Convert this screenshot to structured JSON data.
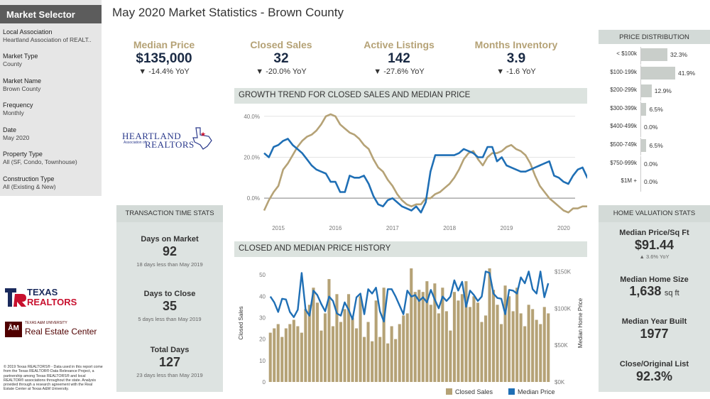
{
  "sidebar": {
    "header": "Market Selector",
    "fields": [
      {
        "label": "Local Association",
        "value": "Heartland Association of REALT.."
      },
      {
        "label": "Market Type",
        "value": "County"
      },
      {
        "label": "Market Name",
        "value": "Brown County"
      },
      {
        "label": "Frequency",
        "value": "Monthly"
      },
      {
        "label": "Date",
        "value": "May 2020"
      },
      {
        "label": "Property Type",
        "value": "All (SF, Condo, Townhouse)"
      },
      {
        "label": "Construction Type",
        "value": "All (Existing & New)"
      }
    ]
  },
  "title": "May 2020 Market Statistics - Brown County",
  "kpis": [
    {
      "label": "Median Price",
      "value": "$135,000",
      "change": "▼ -14.4% YoY"
    },
    {
      "label": "Closed Sales",
      "value": "32",
      "change": "▼ -20.0% YoY"
    },
    {
      "label": "Active Listings",
      "value": "142",
      "change": "▼ -27.6% YoY"
    },
    {
      "label": "Months Inventory",
      "value": "3.9",
      "change": "▼ -1.6 YoY"
    }
  ],
  "logos": {
    "heartland_line1": "HEARTLAND",
    "heartland_line2": "Association of",
    "heartland_line3": "REALTORS",
    "texas_realtors_1": "TEXAS",
    "texas_realtors_2": "REALTORS",
    "tamu_small": "TEXAS A&M UNIVERSITY",
    "tamu_name": "Real Estate Center",
    "tamu_mark": "ĀM"
  },
  "footnote": "© 2019 Texas REALTORS® - Data used in this report come from the Texas REALTOR® Data Relevance Project, a partnership among Texas REALTORS® and local REALTOR® associations throughout the state. Analysis provided through a research agreement with the Real Estate Center at Texas A&M University.",
  "transaction_stats": {
    "title": "TRANSACTION TIME STATS",
    "items": [
      {
        "label": "Days on Market",
        "value": "92",
        "note": "18 days less than May 2019"
      },
      {
        "label": "Days to Close",
        "value": "35",
        "note": "5 days less than May 2019"
      },
      {
        "label": "Total Days",
        "value": "127",
        "note": "23 days less than May 2019"
      }
    ]
  },
  "growth_trend": {
    "title": "GROWTH TREND FOR CLOSED SALES AND MEDIAN PRICE"
  },
  "history": {
    "title": "CLOSED AND MEDIAN PRICE HISTORY",
    "legend_sales": "Closed Sales",
    "legend_price": "Median Price"
  },
  "price_distribution": {
    "title": "PRICE DISTRIBUTION",
    "rows": [
      {
        "label": "< $100k",
        "value": "32.3%",
        "pct": 32.3
      },
      {
        "label": "$100-199k",
        "value": "41.9%",
        "pct": 41.9
      },
      {
        "label": "$200-299k",
        "value": "12.9%",
        "pct": 12.9
      },
      {
        "label": "$300-399k",
        "value": "6.5%",
        "pct": 6.5
      },
      {
        "label": "$400-499k",
        "value": "0.0%",
        "pct": 0
      },
      {
        "label": "$500-749k",
        "value": "6.5%",
        "pct": 6.5
      },
      {
        "label": "$750-999k",
        "value": "0.0%",
        "pct": 0
      },
      {
        "label": "$1M +",
        "value": "0.0%",
        "pct": 0
      }
    ]
  },
  "home_valuation": {
    "title": "HOME VALUATION STATS",
    "ppsf_label": "Median Price/Sq Ft",
    "ppsf_value": "$91.44",
    "ppsf_change": "▲ 3.6% YoY",
    "size_label": "Median Home Size",
    "size_value": "1,638",
    "size_unit": "sq ft",
    "year_label": "Median Year Built",
    "year_value": "1977",
    "ratio_label": "Close/Original List",
    "ratio_value": "92.3%"
  },
  "colors": {
    "sales": "#b5a276",
    "price": "#1f6fb5",
    "gold": "#b5a276",
    "navy": "#1a2a44"
  },
  "chart_data": [
    {
      "type": "line",
      "title": "GROWTH TREND FOR CLOSED SALES AND MEDIAN PRICE",
      "xlabel": "",
      "ylabel": "",
      "x_ticks": [
        "2015",
        "2016",
        "2017",
        "2018",
        "2019",
        "2020"
      ],
      "y_ticks": [
        "0.0%",
        "20.0%",
        "40.0%"
      ],
      "ylim": [
        -10,
        42
      ],
      "x_start": 2014.75,
      "x_step": 0.0833,
      "series": [
        {
          "name": "Closed Sales",
          "values": [
            -6,
            -1,
            3,
            6,
            14,
            17,
            21,
            25,
            28,
            30,
            31,
            33,
            36,
            40,
            41,
            40,
            36,
            34,
            32,
            31,
            29,
            26,
            24,
            19,
            15,
            13,
            9,
            6,
            2,
            -1,
            -3,
            -4,
            -3,
            -3,
            0,
            0,
            2,
            3,
            5,
            7,
            10,
            14,
            19,
            22,
            23,
            19,
            16,
            20,
            22,
            22,
            23,
            25,
            26,
            24,
            23,
            21,
            17,
            11,
            6,
            3,
            0,
            -2,
            -4,
            -6,
            -7,
            -5,
            -5,
            -4,
            -4,
            -2,
            2,
            3,
            3,
            3,
            9,
            7,
            6
          ]
        },
        {
          "name": "Median Price",
          "values": [
            22,
            20,
            25,
            26,
            28,
            29,
            26,
            24,
            22,
            19,
            16,
            14,
            13,
            12,
            8,
            8,
            3,
            3,
            11,
            10,
            10,
            11,
            7,
            1,
            -3,
            -4,
            -1,
            0,
            -2,
            -4,
            -5,
            -6,
            -4,
            -7,
            -2,
            13,
            21,
            21,
            21,
            21,
            21,
            22,
            24,
            23,
            22,
            20,
            20,
            25,
            25,
            18,
            20,
            16,
            15,
            14,
            13,
            13,
            14,
            15,
            16,
            17,
            18,
            11,
            10,
            8,
            7,
            11,
            14,
            15,
            10,
            8,
            8
          ]
        }
      ]
    },
    {
      "type": "bar",
      "title": "CLOSED AND MEDIAN PRICE HISTORY",
      "xlabel": "",
      "ylabel": "Closed Sales",
      "y2label": "Median Home Price",
      "ylim": [
        0,
        55
      ],
      "y_ticks": [
        "0",
        "10",
        "20",
        "30",
        "40",
        "50"
      ],
      "y2lim": [
        0,
        160000
      ],
      "y2_ticks": [
        "$0K",
        "$50K",
        "$100K",
        "$150K"
      ],
      "series": [
        {
          "name": "Closed Sales",
          "type": "bar",
          "values": [
            23,
            25,
            27,
            21,
            25,
            27,
            29,
            26,
            23,
            34,
            36,
            44,
            37,
            24,
            32,
            48,
            26,
            41,
            28,
            34,
            41,
            30,
            25,
            40,
            21,
            28,
            19,
            38,
            21,
            44,
            18,
            26,
            20,
            27,
            31,
            32,
            53,
            42,
            43,
            42,
            47,
            36,
            46,
            32,
            44,
            33,
            24,
            42,
            38,
            41,
            47,
            35,
            40,
            37,
            28,
            31,
            53,
            43,
            36,
            27,
            45,
            40,
            33,
            44,
            32,
            26,
            36,
            34,
            29,
            27,
            35,
            32
          ]
        },
        {
          "name": "Median Price",
          "type": "line",
          "values": [
            116,
            108,
            95,
            113,
            112,
            95,
            88,
            98,
            148,
            98,
            90,
            124,
            118,
            106,
            96,
            116,
            110,
            93,
            90,
            108,
            98,
            85,
            115,
            120,
            92,
            126,
            120,
            128,
            96,
            82,
            126,
            126,
            116,
            104,
            92,
            124,
            116,
            118,
            110,
            115,
            108,
            125,
            112,
            100,
            116,
            110,
            116,
            138,
            124,
            136,
            102,
            124,
            118,
            110,
            116,
            150,
            148,
            120,
            114,
            113,
            92,
            125,
            124,
            120,
            142,
            134,
            150,
            126,
            120,
            150,
            115,
            134
          ]
        }
      ]
    },
    {
      "type": "bar",
      "title": "PRICE DISTRIBUTION",
      "categories": [
        "< $100k",
        "$100-199k",
        "$200-299k",
        "$300-399k",
        "$400-499k",
        "$500-749k",
        "$750-999k",
        "$1M +"
      ],
      "values": [
        32.3,
        41.9,
        12.9,
        6.5,
        0.0,
        6.5,
        0.0,
        0.0
      ]
    }
  ]
}
